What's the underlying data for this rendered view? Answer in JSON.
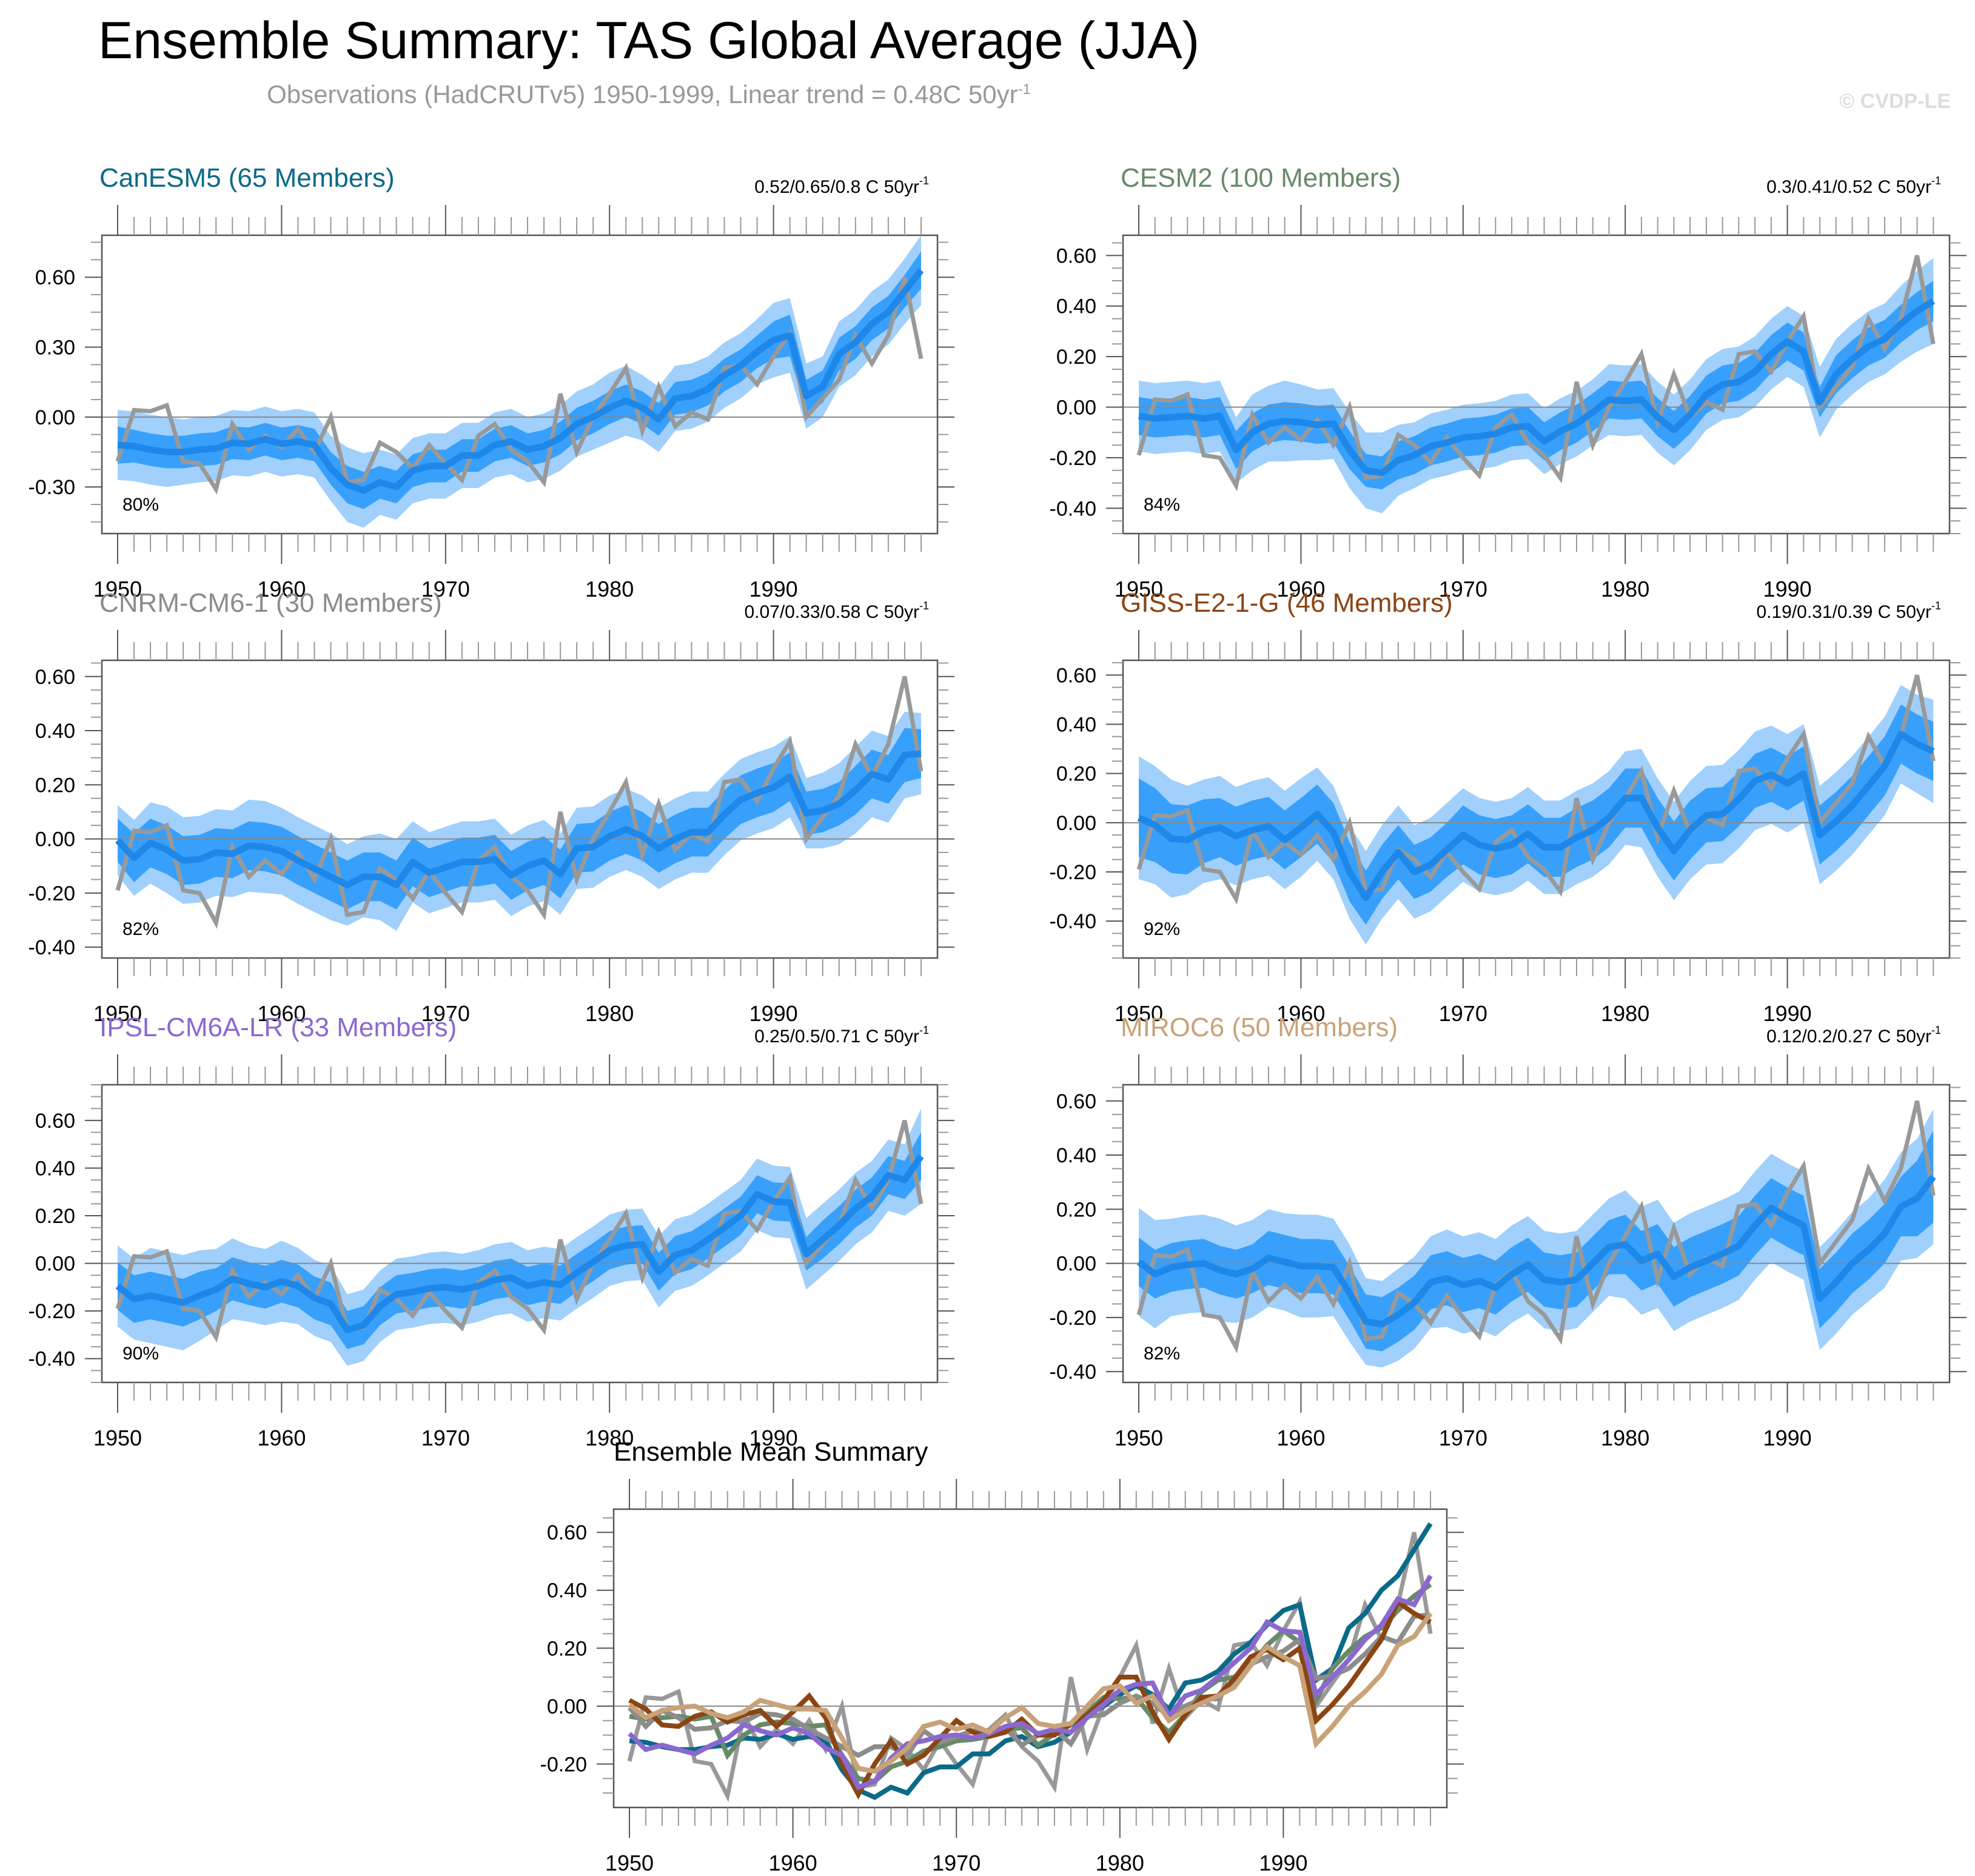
{
  "header": {
    "title": "Ensemble Summary: TAS Global Average (JJA)",
    "subtitle": "Observations (HadCRUTv5) 1950-1999, Linear trend = 0.48C 50yr",
    "subtitle_sup": "-1",
    "watermark": "© CVDP-LE"
  },
  "colors": {
    "obs": "#999999",
    "mean": "#1e88ea",
    "band_outer": "#a0d0fb",
    "band_inner": "#38a0fb",
    "zero_line": "#888888"
  },
  "chart_data": [
    {
      "type": "area",
      "id": "canesm5",
      "title": "CanESM5 (65 Members)",
      "title_color": "#0b6a88",
      "trend_label": "0.52/0.65/0.8 C 50yr",
      "trend_sup": "-1",
      "percent_label": "80%",
      "ylim": [
        -0.5,
        0.78
      ],
      "yticks": [
        -0.3,
        0.0,
        0.3,
        0.6
      ],
      "ytick_labels": [
        "-0.30",
        "0.00",
        "0.30",
        "0.60"
      ],
      "mean": [
        -0.12,
        -0.125,
        -0.14,
        -0.15,
        -0.15,
        -0.14,
        -0.135,
        -0.11,
        -0.115,
        -0.095,
        -0.115,
        -0.105,
        -0.12,
        -0.22,
        -0.29,
        -0.315,
        -0.28,
        -0.3,
        -0.23,
        -0.21,
        -0.21,
        -0.165,
        -0.165,
        -0.12,
        -0.105,
        -0.14,
        -0.125,
        -0.09,
        -0.03,
        0.0,
        0.04,
        0.07,
        0.04,
        -0.01,
        0.08,
        0.09,
        0.12,
        0.18,
        0.22,
        0.28,
        0.33,
        0.35,
        0.09,
        0.13,
        0.27,
        0.32,
        0.4,
        0.45,
        0.54,
        0.63
      ],
      "inner_half": [
        0.08,
        0.07,
        0.07,
        0.07,
        0.07,
        0.07,
        0.07,
        0.07,
        0.07,
        0.07,
        0.07,
        0.07,
        0.07,
        0.07,
        0.08,
        0.08,
        0.07,
        0.07,
        0.07,
        0.07,
        0.07,
        0.07,
        0.07,
        0.07,
        0.07,
        0.07,
        0.07,
        0.07,
        0.07,
        0.07,
        0.07,
        0.07,
        0.07,
        0.07,
        0.07,
        0.07,
        0.07,
        0.07,
        0.07,
        0.07,
        0.08,
        0.09,
        0.07,
        0.07,
        0.07,
        0.07,
        0.07,
        0.07,
        0.07,
        0.08
      ],
      "outer_half": [
        0.15,
        0.15,
        0.15,
        0.15,
        0.14,
        0.14,
        0.14,
        0.14,
        0.14,
        0.14,
        0.14,
        0.14,
        0.14,
        0.14,
        0.16,
        0.16,
        0.14,
        0.14,
        0.14,
        0.14,
        0.14,
        0.14,
        0.14,
        0.14,
        0.14,
        0.14,
        0.14,
        0.14,
        0.14,
        0.14,
        0.15,
        0.15,
        0.14,
        0.14,
        0.14,
        0.14,
        0.14,
        0.14,
        0.14,
        0.14,
        0.16,
        0.16,
        0.14,
        0.13,
        0.14,
        0.14,
        0.14,
        0.14,
        0.14,
        0.15
      ]
    },
    {
      "type": "area",
      "id": "cesm2",
      "title": "CESM2 (100 Members)",
      "title_color": "#688a68",
      "trend_label": "0.3/0.41/0.52 C 50yr",
      "trend_sup": "-1",
      "percent_label": "84%",
      "ylim": [
        -0.5,
        0.68
      ],
      "yticks": [
        -0.4,
        -0.2,
        0.0,
        0.2,
        0.4,
        0.6
      ],
      "ytick_labels": [
        "-0.40",
        "-0.20",
        "0.00",
        "0.20",
        "0.40",
        "0.60"
      ],
      "mean": [
        -0.035,
        -0.045,
        -0.04,
        -0.035,
        -0.045,
        -0.035,
        -0.17,
        -0.1,
        -0.065,
        -0.055,
        -0.06,
        -0.07,
        -0.065,
        -0.17,
        -0.25,
        -0.26,
        -0.21,
        -0.19,
        -0.155,
        -0.14,
        -0.12,
        -0.115,
        -0.105,
        -0.08,
        -0.075,
        -0.135,
        -0.095,
        -0.065,
        -0.02,
        0.03,
        0.025,
        0.03,
        -0.04,
        -0.09,
        -0.03,
        0.05,
        0.09,
        0.1,
        0.14,
        0.21,
        0.26,
        0.22,
        0.02,
        0.13,
        0.19,
        0.24,
        0.27,
        0.33,
        0.38,
        0.42
      ],
      "inner_half": [
        0.075,
        0.075,
        0.075,
        0.075,
        0.075,
        0.075,
        0.075,
        0.075,
        0.075,
        0.075,
        0.075,
        0.075,
        0.075,
        0.075,
        0.065,
        0.065,
        0.075,
        0.075,
        0.075,
        0.075,
        0.075,
        0.075,
        0.075,
        0.075,
        0.075,
        0.075,
        0.075,
        0.075,
        0.075,
        0.075,
        0.075,
        0.075,
        0.075,
        0.075,
        0.075,
        0.075,
        0.075,
        0.075,
        0.075,
        0.075,
        0.075,
        0.075,
        0.06,
        0.075,
        0.075,
        0.075,
        0.075,
        0.075,
        0.075,
        0.08
      ],
      "outer_half": [
        0.14,
        0.14,
        0.14,
        0.14,
        0.14,
        0.14,
        0.13,
        0.15,
        0.15,
        0.16,
        0.15,
        0.14,
        0.14,
        0.15,
        0.15,
        0.16,
        0.14,
        0.13,
        0.13,
        0.13,
        0.13,
        0.13,
        0.13,
        0.13,
        0.13,
        0.13,
        0.13,
        0.13,
        0.13,
        0.14,
        0.14,
        0.14,
        0.14,
        0.14,
        0.14,
        0.14,
        0.14,
        0.14,
        0.14,
        0.14,
        0.14,
        0.14,
        0.14,
        0.14,
        0.14,
        0.14,
        0.14,
        0.15,
        0.16,
        0.17
      ]
    },
    {
      "type": "area",
      "id": "cnrm",
      "title": "CNRM-CM6-1 (30 Members)",
      "title_color": "#8c8c8c",
      "trend_label": "0.07/0.33/0.58 C 50yr",
      "trend_sup": "-1",
      "percent_label": "82%",
      "ylim": [
        -0.44,
        0.66
      ],
      "yticks": [
        -0.4,
        -0.2,
        0.0,
        0.2,
        0.4,
        0.6
      ],
      "ytick_labels": [
        "-0.40",
        "-0.20",
        "0.00",
        "0.20",
        "0.40",
        "0.60"
      ],
      "mean": [
        -0.005,
        -0.07,
        -0.015,
        -0.04,
        -0.08,
        -0.075,
        -0.05,
        -0.055,
        -0.025,
        -0.03,
        -0.045,
        -0.08,
        -0.11,
        -0.14,
        -0.17,
        -0.14,
        -0.14,
        -0.17,
        -0.085,
        -0.125,
        -0.105,
        -0.085,
        -0.085,
        -0.075,
        -0.135,
        -0.1,
        -0.08,
        -0.13,
        -0.035,
        -0.03,
        0.01,
        0.035,
        0.01,
        -0.035,
        0.0,
        0.025,
        0.025,
        0.09,
        0.145,
        0.17,
        0.19,
        0.23,
        0.095,
        0.105,
        0.13,
        0.18,
        0.24,
        0.22,
        0.31,
        0.315
      ],
      "inner_half": [
        0.08,
        0.09,
        0.09,
        0.09,
        0.09,
        0.09,
        0.09,
        0.09,
        0.09,
        0.09,
        0.09,
        0.09,
        0.09,
        0.09,
        0.09,
        0.09,
        0.09,
        0.09,
        0.09,
        0.09,
        0.09,
        0.09,
        0.09,
        0.09,
        0.09,
        0.09,
        0.09,
        0.09,
        0.09,
        0.09,
        0.09,
        0.09,
        0.09,
        0.09,
        0.09,
        0.09,
        0.09,
        0.09,
        0.09,
        0.09,
        0.09,
        0.09,
        0.08,
        0.08,
        0.08,
        0.09,
        0.09,
        0.09,
        0.1,
        0.09
      ],
      "outer_half": [
        0.13,
        0.14,
        0.15,
        0.16,
        0.16,
        0.16,
        0.16,
        0.16,
        0.17,
        0.17,
        0.16,
        0.16,
        0.16,
        0.16,
        0.15,
        0.15,
        0.16,
        0.17,
        0.15,
        0.15,
        0.15,
        0.15,
        0.15,
        0.15,
        0.15,
        0.15,
        0.15,
        0.15,
        0.15,
        0.15,
        0.15,
        0.15,
        0.15,
        0.15,
        0.15,
        0.15,
        0.15,
        0.15,
        0.15,
        0.15,
        0.15,
        0.15,
        0.13,
        0.14,
        0.15,
        0.16,
        0.16,
        0.16,
        0.16,
        0.15
      ]
    },
    {
      "type": "area",
      "id": "giss",
      "title": "GISS-E2-1-G (46 Members)",
      "title_color": "#8b4513",
      "trend_label": "0.19/0.31/0.39 C 50yr",
      "trend_sup": "-1",
      "percent_label": "92%",
      "ylim": [
        -0.55,
        0.66
      ],
      "yticks": [
        -0.4,
        -0.2,
        0.0,
        0.2,
        0.4,
        0.6
      ],
      "ytick_labels": [
        "-0.40",
        "-0.20",
        "0.00",
        "0.20",
        "0.40",
        "0.60"
      ],
      "mean": [
        0.02,
        -0.01,
        -0.065,
        -0.07,
        -0.035,
        -0.02,
        -0.055,
        -0.03,
        -0.015,
        -0.07,
        -0.02,
        0.035,
        -0.04,
        -0.2,
        -0.305,
        -0.2,
        -0.12,
        -0.2,
        -0.17,
        -0.11,
        -0.05,
        -0.09,
        -0.105,
        -0.09,
        -0.045,
        -0.1,
        -0.1,
        -0.06,
        -0.03,
        0.02,
        0.1,
        0.1,
        -0.02,
        -0.115,
        -0.03,
        0.03,
        0.035,
        0.095,
        0.17,
        0.195,
        0.16,
        0.2,
        -0.05,
        0.005,
        0.07,
        0.15,
        0.23,
        0.36,
        0.32,
        0.29
      ],
      "inner_half": [
        0.16,
        0.15,
        0.14,
        0.14,
        0.13,
        0.12,
        0.12,
        0.12,
        0.12,
        0.12,
        0.12,
        0.12,
        0.12,
        0.12,
        0.11,
        0.11,
        0.11,
        0.11,
        0.11,
        0.11,
        0.12,
        0.12,
        0.12,
        0.12,
        0.12,
        0.12,
        0.12,
        0.12,
        0.12,
        0.12,
        0.12,
        0.12,
        0.12,
        0.12,
        0.12,
        0.11,
        0.11,
        0.11,
        0.11,
        0.11,
        0.11,
        0.11,
        0.12,
        0.12,
        0.12,
        0.12,
        0.12,
        0.12,
        0.12,
        0.12
      ],
      "outer_half": [
        0.25,
        0.24,
        0.24,
        0.22,
        0.21,
        0.21,
        0.2,
        0.2,
        0.2,
        0.2,
        0.2,
        0.19,
        0.19,
        0.19,
        0.19,
        0.19,
        0.19,
        0.19,
        0.19,
        0.19,
        0.19,
        0.19,
        0.19,
        0.19,
        0.19,
        0.19,
        0.19,
        0.19,
        0.19,
        0.19,
        0.19,
        0.2,
        0.2,
        0.2,
        0.2,
        0.2,
        0.2,
        0.2,
        0.2,
        0.2,
        0.2,
        0.2,
        0.2,
        0.2,
        0.2,
        0.2,
        0.2,
        0.2,
        0.2,
        0.21
      ]
    },
    {
      "type": "area",
      "id": "ipsl",
      "title": "IPSL-CM6A-LR (33 Members)",
      "title_color": "#8b68d0",
      "trend_label": "0.25/0.5/0.71 C 50yr",
      "trend_sup": "-1",
      "percent_label": "90%",
      "ylim": [
        -0.5,
        0.75
      ],
      "yticks": [
        -0.4,
        -0.2,
        0.0,
        0.2,
        0.4,
        0.6
      ],
      "ytick_labels": [
        "-0.40",
        "-0.20",
        "0.00",
        "0.20",
        "0.40",
        "0.60"
      ],
      "mean": [
        -0.095,
        -0.15,
        -0.135,
        -0.15,
        -0.165,
        -0.135,
        -0.11,
        -0.065,
        -0.085,
        -0.1,
        -0.075,
        -0.095,
        -0.145,
        -0.17,
        -0.28,
        -0.26,
        -0.18,
        -0.13,
        -0.12,
        -0.105,
        -0.1,
        -0.11,
        -0.095,
        -0.07,
        -0.06,
        -0.095,
        -0.08,
        -0.09,
        -0.04,
        0.005,
        0.055,
        0.075,
        0.08,
        -0.035,
        0.035,
        0.055,
        0.1,
        0.15,
        0.2,
        0.29,
        0.26,
        0.255,
        0.04,
        0.1,
        0.16,
        0.23,
        0.28,
        0.37,
        0.35,
        0.45
      ],
      "inner_half": [
        0.1,
        0.1,
        0.1,
        0.1,
        0.1,
        0.1,
        0.09,
        0.09,
        0.09,
        0.09,
        0.09,
        0.09,
        0.09,
        0.09,
        0.08,
        0.08,
        0.08,
        0.08,
        0.08,
        0.08,
        0.08,
        0.08,
        0.08,
        0.08,
        0.08,
        0.08,
        0.08,
        0.08,
        0.08,
        0.08,
        0.08,
        0.08,
        0.08,
        0.08,
        0.08,
        0.08,
        0.08,
        0.08,
        0.08,
        0.08,
        0.08,
        0.08,
        0.07,
        0.08,
        0.08,
        0.08,
        0.08,
        0.08,
        0.08,
        0.1
      ],
      "outer_half": [
        0.17,
        0.17,
        0.2,
        0.2,
        0.2,
        0.19,
        0.17,
        0.17,
        0.16,
        0.16,
        0.17,
        0.16,
        0.16,
        0.16,
        0.15,
        0.15,
        0.15,
        0.15,
        0.15,
        0.15,
        0.15,
        0.15,
        0.15,
        0.15,
        0.15,
        0.15,
        0.15,
        0.15,
        0.15,
        0.15,
        0.15,
        0.15,
        0.15,
        0.15,
        0.15,
        0.15,
        0.15,
        0.15,
        0.15,
        0.15,
        0.15,
        0.15,
        0.15,
        0.15,
        0.15,
        0.15,
        0.15,
        0.15,
        0.15,
        0.2
      ]
    },
    {
      "type": "area",
      "id": "miroc6",
      "title": "MIROC6 (50 Members)",
      "title_color": "#c8a278",
      "trend_label": "0.12/0.2/0.27 C 50yr",
      "trend_sup": "-1",
      "percent_label": "82%",
      "ylim": [
        -0.44,
        0.66
      ],
      "yticks": [
        -0.4,
        -0.2,
        0.0,
        0.2,
        0.4,
        0.6
      ],
      "ytick_labels": [
        "-0.40",
        "-0.20",
        "0.00",
        "0.20",
        "0.40",
        "0.60"
      ],
      "mean": [
        0.005,
        -0.04,
        -0.015,
        -0.005,
        0.0,
        -0.025,
        -0.04,
        -0.02,
        0.02,
        0.005,
        -0.01,
        -0.01,
        -0.015,
        -0.11,
        -0.215,
        -0.225,
        -0.19,
        -0.145,
        -0.07,
        -0.055,
        -0.08,
        -0.065,
        -0.09,
        -0.04,
        -0.005,
        -0.06,
        -0.07,
        -0.06,
        0.0,
        0.06,
        0.07,
        0.01,
        0.035,
        -0.05,
        -0.015,
        0.01,
        0.035,
        0.065,
        0.14,
        0.205,
        0.17,
        0.14,
        -0.13,
        -0.07,
        0.0,
        0.05,
        0.11,
        0.21,
        0.24,
        0.32
      ],
      "inner_half": [
        0.09,
        0.09,
        0.09,
        0.09,
        0.09,
        0.09,
        0.09,
        0.09,
        0.1,
        0.1,
        0.1,
        0.1,
        0.1,
        0.1,
        0.1,
        0.1,
        0.1,
        0.1,
        0.1,
        0.1,
        0.1,
        0.1,
        0.1,
        0.1,
        0.1,
        0.1,
        0.1,
        0.1,
        0.1,
        0.1,
        0.11,
        0.11,
        0.11,
        0.11,
        0.11,
        0.11,
        0.11,
        0.11,
        0.11,
        0.11,
        0.11,
        0.11,
        0.11,
        0.11,
        0.11,
        0.11,
        0.11,
        0.11,
        0.14,
        0.17
      ],
      "outer_half": [
        0.2,
        0.2,
        0.18,
        0.18,
        0.18,
        0.19,
        0.18,
        0.18,
        0.18,
        0.18,
        0.19,
        0.19,
        0.18,
        0.18,
        0.16,
        0.16,
        0.17,
        0.17,
        0.17,
        0.18,
        0.18,
        0.18,
        0.18,
        0.18,
        0.18,
        0.18,
        0.18,
        0.18,
        0.18,
        0.18,
        0.2,
        0.2,
        0.2,
        0.2,
        0.2,
        0.2,
        0.2,
        0.2,
        0.2,
        0.2,
        0.2,
        0.2,
        0.19,
        0.19,
        0.19,
        0.19,
        0.2,
        0.2,
        0.22,
        0.25
      ]
    },
    {
      "type": "line",
      "id": "ensemble-mean-summary",
      "title": "Ensemble Mean Summary",
      "title_color": "#000000",
      "ylim": [
        -0.35,
        0.68
      ],
      "yticks": [
        -0.2,
        0.0,
        0.2,
        0.4,
        0.6
      ],
      "ytick_labels": [
        "-0.20",
        "0.00",
        "0.20",
        "0.40",
        "0.60"
      ],
      "series_from_models": [
        {
          "name": "CanESM5",
          "color": "#0b6a88"
        },
        {
          "name": "CESM2",
          "color": "#688a68"
        },
        {
          "name": "CNRM-CM6-1",
          "color": "#8c8c8c"
        },
        {
          "name": "GISS-E2-1-G",
          "color": "#8b4513"
        },
        {
          "name": "IPSL-CM6A-LR",
          "color": "#8b68d0"
        },
        {
          "name": "MIROC6",
          "color": "#c8a278"
        }
      ]
    }
  ],
  "shared_axis": {
    "x_start": 1950,
    "x_end": 1999,
    "xticks": [
      1950,
      1960,
      1970,
      1980,
      1990
    ],
    "xtick_labels": [
      "1950",
      "1960",
      "1970",
      "1980",
      "1990"
    ]
  },
  "observations": {
    "name": "HadCRUTv5",
    "values": [
      -0.19,
      0.03,
      0.025,
      0.05,
      -0.19,
      -0.2,
      -0.31,
      -0.03,
      -0.14,
      -0.08,
      -0.13,
      -0.05,
      -0.15,
      0.0,
      -0.28,
      -0.27,
      -0.11,
      -0.15,
      -0.22,
      -0.12,
      -0.2,
      -0.27,
      -0.08,
      -0.03,
      -0.14,
      -0.19,
      -0.28,
      0.1,
      -0.15,
      0.0,
      0.1,
      0.21,
      -0.06,
      0.13,
      -0.04,
      0.02,
      -0.01,
      0.21,
      0.22,
      0.14,
      0.26,
      0.36,
      0.0,
      0.08,
      0.16,
      0.35,
      0.23,
      0.35,
      0.6,
      0.25
    ]
  }
}
